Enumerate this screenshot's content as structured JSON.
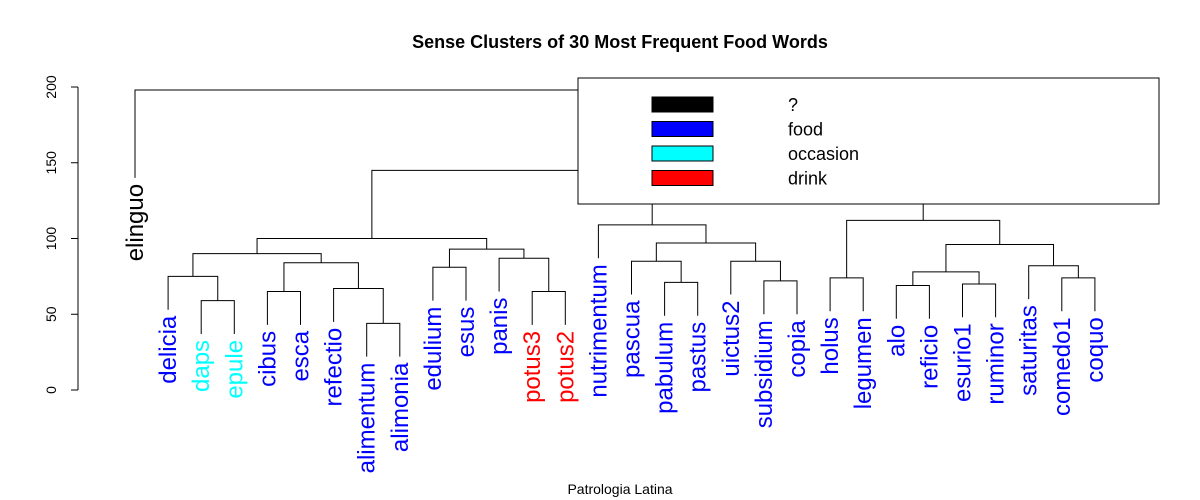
{
  "chart_data": {
    "type": "dendrogram",
    "title": "Sense Clusters of 30 Most Frequent Food Words",
    "xlabel": "Patrologia Latina",
    "ylabel": "",
    "ylim": [
      0,
      200
    ],
    "yticks": [
      0,
      50,
      100,
      150,
      200
    ],
    "grid": false,
    "legend_position": "top-right",
    "colors": {
      "?": "#000000",
      "food": "#0000ff",
      "occasion": "#00ffff",
      "drink": "#ff0000"
    },
    "legend": [
      {
        "label": "?",
        "color": "#000000"
      },
      {
        "label": "food",
        "color": "#0000ff"
      },
      {
        "label": "occasion",
        "color": "#00ffff"
      },
      {
        "label": "drink",
        "color": "#ff0000"
      }
    ],
    "leaves": [
      {
        "label": "elinguo",
        "sense": "?"
      },
      {
        "label": "delicia",
        "sense": "food"
      },
      {
        "label": "daps",
        "sense": "occasion"
      },
      {
        "label": "epule",
        "sense": "occasion"
      },
      {
        "label": "cibus",
        "sense": "food"
      },
      {
        "label": "esca",
        "sense": "food"
      },
      {
        "label": "refectio",
        "sense": "food"
      },
      {
        "label": "alimentum",
        "sense": "food"
      },
      {
        "label": "alimonia",
        "sense": "food"
      },
      {
        "label": "edulium",
        "sense": "food"
      },
      {
        "label": "esus",
        "sense": "food"
      },
      {
        "label": "panis",
        "sense": "food"
      },
      {
        "label": "potus3",
        "sense": "drink"
      },
      {
        "label": "potus2",
        "sense": "drink"
      },
      {
        "label": "nutrimentum",
        "sense": "food"
      },
      {
        "label": "pascua",
        "sense": "food"
      },
      {
        "label": "pabulum",
        "sense": "food"
      },
      {
        "label": "pastus",
        "sense": "food"
      },
      {
        "label": "uictus2",
        "sense": "food"
      },
      {
        "label": "subsidium",
        "sense": "food"
      },
      {
        "label": "copia",
        "sense": "food"
      },
      {
        "label": "holus",
        "sense": "food"
      },
      {
        "label": "legumen",
        "sense": "food"
      },
      {
        "label": "alo",
        "sense": "food"
      },
      {
        "label": "reficio",
        "sense": "food"
      },
      {
        "label": "esurio1",
        "sense": "food"
      },
      {
        "label": "ruminor",
        "sense": "food"
      },
      {
        "label": "saturitas",
        "sense": "food"
      },
      {
        "label": "comedo1",
        "sense": "food"
      },
      {
        "label": "coquo",
        "sense": "food"
      }
    ],
    "merges": [
      {
        "id": "m1",
        "left": "daps",
        "right": "epule",
        "height": 59
      },
      {
        "id": "m2",
        "left": "delicia",
        "right": "m1",
        "height": 75
      },
      {
        "id": "m3",
        "left": "cibus",
        "right": "esca",
        "height": 65
      },
      {
        "id": "m4",
        "left": "alimentum",
        "right": "alimonia",
        "height": 44
      },
      {
        "id": "m5",
        "left": "refectio",
        "right": "m4",
        "height": 67
      },
      {
        "id": "m6",
        "left": "m3",
        "right": "m5",
        "height": 84
      },
      {
        "id": "m7",
        "left": "m2",
        "right": "m6",
        "height": 90
      },
      {
        "id": "m8",
        "left": "edulium",
        "right": "esus",
        "height": 81
      },
      {
        "id": "m9",
        "left": "potus3",
        "right": "potus2",
        "height": 65
      },
      {
        "id": "m10",
        "left": "panis",
        "right": "m9",
        "height": 87
      },
      {
        "id": "m11",
        "left": "m8",
        "right": "m10",
        "height": 93
      },
      {
        "id": "m12",
        "left": "m7",
        "right": "m11",
        "height": 100
      },
      {
        "id": "m13",
        "left": "pabulum",
        "right": "pastus",
        "height": 71
      },
      {
        "id": "m14",
        "left": "pascua",
        "right": "m13",
        "height": 85
      },
      {
        "id": "m15",
        "left": "subsidium",
        "right": "copia",
        "height": 72
      },
      {
        "id": "m16",
        "left": "uictus2",
        "right": "m15",
        "height": 85
      },
      {
        "id": "m17",
        "left": "m14",
        "right": "m16",
        "height": 97
      },
      {
        "id": "m18",
        "left": "nutrimentum",
        "right": "m17",
        "height": 109
      },
      {
        "id": "m19",
        "left": "holus",
        "right": "legumen",
        "height": 74
      },
      {
        "id": "m20",
        "left": "alo",
        "right": "reficio",
        "height": 69
      },
      {
        "id": "m21",
        "left": "esurio1",
        "right": "ruminor",
        "height": 70
      },
      {
        "id": "m22",
        "left": "m20",
        "right": "m21",
        "height": 78
      },
      {
        "id": "m23",
        "left": "comedo1",
        "right": "coquo",
        "height": 74
      },
      {
        "id": "m24",
        "left": "saturitas",
        "right": "m23",
        "height": 82
      },
      {
        "id": "m25",
        "left": "m22",
        "right": "m24",
        "height": 96
      },
      {
        "id": "m26",
        "left": "m19",
        "right": "m25",
        "height": 112
      },
      {
        "id": "m27",
        "left": "m18",
        "right": "m26",
        "height": 125
      },
      {
        "id": "m28",
        "left": "m12",
        "right": "m27",
        "height": 145
      },
      {
        "id": "m29",
        "left": "elinguo",
        "right": "m28",
        "height": 198
      }
    ]
  }
}
